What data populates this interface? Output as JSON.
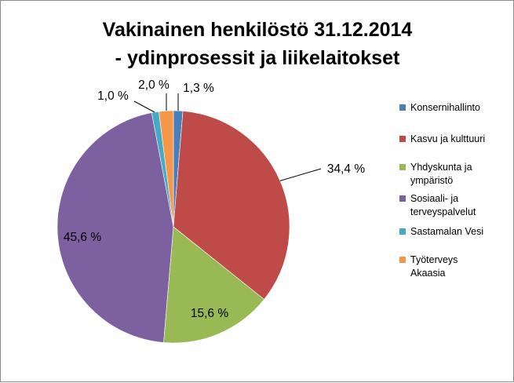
{
  "chart_data": {
    "type": "pie",
    "title": "Vakinainen henkilöstö 31.12.2014",
    "subtitle": "- ydinprosessit ja liikelaitokset",
    "categories": [
      "Konsernihallinto",
      "Kasvu ja kulttuuri",
      "Yhdyskunta ja ympäristö",
      "Sosiaali- ja terveyspalvelut",
      "Sastamalan Vesi",
      "Työterveys Akaasia"
    ],
    "values": [
      1.3,
      34.4,
      15.6,
      45.6,
      1.0,
      2.0
    ],
    "value_labels": [
      "1,3 %",
      "34,4 %",
      "15,6 %",
      "45,6 %",
      "1,0 %",
      "2,0 %"
    ],
    "legend_lines": [
      [
        "Konsernihallinto"
      ],
      [
        "Kasvu ja kulttuuri"
      ],
      [
        "Yhdyskunta ja",
        "ympäristö"
      ],
      [
        "Sosiaali- ja",
        "terveyspalvelut"
      ],
      [
        "Sastamalan Vesi"
      ],
      [
        "Työterveys",
        "Akaasia"
      ]
    ],
    "colors": [
      "#4a7ebb",
      "#be4b48",
      "#98b954",
      "#7d60a0",
      "#46aac5",
      "#f79646"
    ],
    "legend_position": "right",
    "start_angle_deg": 0,
    "direction": "clockwise"
  }
}
